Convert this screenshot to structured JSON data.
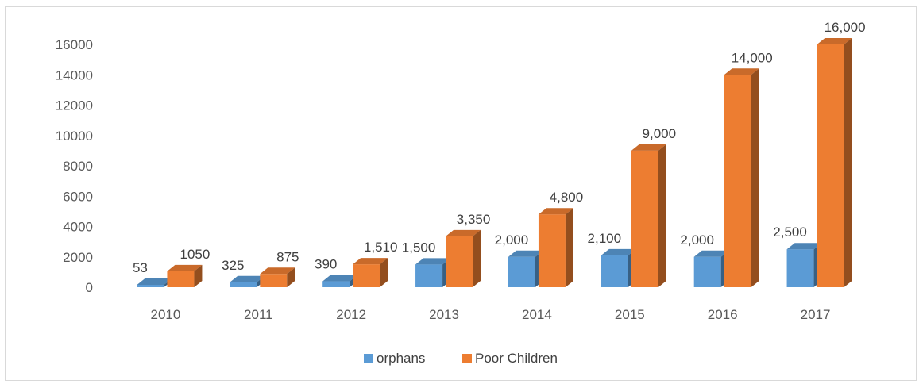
{
  "chart_data": {
    "type": "bar",
    "title": "",
    "xlabel": "",
    "ylabel": "",
    "categories": [
      "2010",
      "2011",
      "2012",
      "2013",
      "2014",
      "2015",
      "2016",
      "2017"
    ],
    "ylim": [
      0,
      16000
    ],
    "yticks": [
      "0",
      "2000",
      "4000",
      "6000",
      "8000",
      "10000",
      "12000",
      "14000",
      "16000"
    ],
    "grid": false,
    "legend_position": "bottom",
    "series": [
      {
        "name": "orphans",
        "values": [
          53,
          325,
          390,
          1500,
          2000,
          2100,
          2000,
          2500
        ],
        "labels": [
          "53",
          "325",
          "390",
          "1,500",
          "2,000",
          "2,100",
          "2,000",
          "2,500"
        ],
        "color": "#5b9bd5"
      },
      {
        "name": "Poor Children",
        "values": [
          1050,
          875,
          1510,
          3350,
          4800,
          9000,
          14000,
          16000
        ],
        "labels": [
          "1050",
          "875",
          "1,510",
          "3,350",
          "4,800",
          "9,000",
          "14,000",
          "16,000"
        ],
        "color": "#ed7d31"
      }
    ]
  }
}
